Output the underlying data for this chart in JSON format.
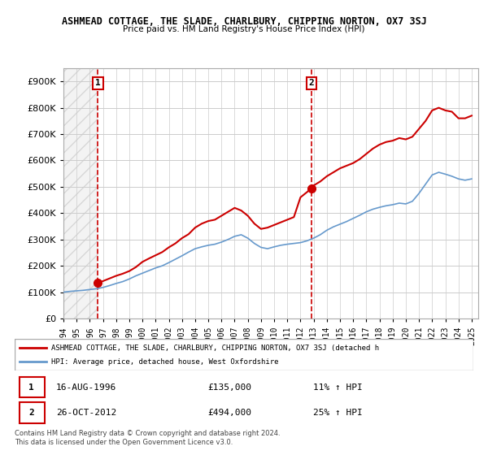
{
  "title": "ASHMEAD COTTAGE, THE SLADE, CHARLBURY, CHIPPING NORTON, OX7 3SJ",
  "subtitle": "Price paid vs. HM Land Registry's House Price Index (HPI)",
  "legend_line1": "ASHMEAD COTTAGE, THE SLADE, CHARLBURY, CHIPPING NORTON, OX7 3SJ (detached h",
  "legend_line2": "HPI: Average price, detached house, West Oxfordshire",
  "footer": "Contains HM Land Registry data © Crown copyright and database right 2024.\nThis data is licensed under the Open Government Licence v3.0.",
  "sale1_label": "1",
  "sale1_date": "16-AUG-1996",
  "sale1_price": "£135,000",
  "sale1_hpi": "11% ↑ HPI",
  "sale1_year": 1996.62,
  "sale1_value": 135000,
  "sale2_label": "2",
  "sale2_date": "26-OCT-2012",
  "sale2_price": "£494,000",
  "sale2_hpi": "25% ↑ HPI",
  "sale2_year": 2012.82,
  "sale2_value": 494000,
  "property_color": "#cc0000",
  "hpi_color": "#6699cc",
  "background_hatch_color": "#dddddd",
  "ylim": [
    0,
    950000
  ],
  "xlim_start": 1994.0,
  "xlim_end": 2025.5,
  "yticks": [
    0,
    100000,
    200000,
    300000,
    400000,
    500000,
    600000,
    700000,
    800000,
    900000
  ],
  "ytick_labels": [
    "£0",
    "£100K",
    "£200K",
    "£300K",
    "£400K",
    "£500K",
    "£600K",
    "£700K",
    "£800K",
    "£900K"
  ],
  "xticks": [
    1994,
    1995,
    1996,
    1997,
    1998,
    1999,
    2000,
    2001,
    2002,
    2003,
    2004,
    2005,
    2006,
    2007,
    2008,
    2009,
    2010,
    2011,
    2012,
    2013,
    2014,
    2015,
    2016,
    2017,
    2018,
    2019,
    2020,
    2021,
    2022,
    2023,
    2024,
    2025
  ],
  "property_x": [
    1996.62,
    1997.0,
    1997.5,
    1998.0,
    1998.5,
    1999.0,
    1999.5,
    2000.0,
    2000.5,
    2001.0,
    2001.5,
    2002.0,
    2002.5,
    2003.0,
    2003.5,
    2004.0,
    2004.5,
    2005.0,
    2005.5,
    2006.0,
    2006.5,
    2007.0,
    2007.5,
    2008.0,
    2008.5,
    2009.0,
    2009.5,
    2010.0,
    2010.5,
    2011.0,
    2011.5,
    2012.0,
    2012.5,
    2012.82,
    2013.0,
    2013.5,
    2014.0,
    2014.5,
    2015.0,
    2015.5,
    2016.0,
    2016.5,
    2017.0,
    2017.5,
    2018.0,
    2018.5,
    2019.0,
    2019.5,
    2020.0,
    2020.5,
    2021.0,
    2021.5,
    2022.0,
    2022.5,
    2023.0,
    2023.5,
    2024.0,
    2024.5,
    2025.0
  ],
  "property_y": [
    135000,
    142000,
    152000,
    162000,
    170000,
    180000,
    195000,
    215000,
    228000,
    240000,
    252000,
    270000,
    285000,
    305000,
    320000,
    345000,
    360000,
    370000,
    375000,
    390000,
    405000,
    420000,
    410000,
    390000,
    360000,
    340000,
    345000,
    355000,
    365000,
    375000,
    385000,
    460000,
    480000,
    494000,
    505000,
    520000,
    540000,
    555000,
    570000,
    580000,
    590000,
    605000,
    625000,
    645000,
    660000,
    670000,
    675000,
    685000,
    680000,
    690000,
    720000,
    750000,
    790000,
    800000,
    790000,
    785000,
    760000,
    760000,
    770000
  ],
  "hpi_x": [
    1994.0,
    1994.5,
    1995.0,
    1995.5,
    1996.0,
    1996.5,
    1997.0,
    1997.5,
    1998.0,
    1998.5,
    1999.0,
    1999.5,
    2000.0,
    2000.5,
    2001.0,
    2001.5,
    2002.0,
    2002.5,
    2003.0,
    2003.5,
    2004.0,
    2004.5,
    2005.0,
    2005.5,
    2006.0,
    2006.5,
    2007.0,
    2007.5,
    2008.0,
    2008.5,
    2009.0,
    2009.5,
    2010.0,
    2010.5,
    2011.0,
    2011.5,
    2012.0,
    2012.5,
    2013.0,
    2013.5,
    2014.0,
    2014.5,
    2015.0,
    2015.5,
    2016.0,
    2016.5,
    2017.0,
    2017.5,
    2018.0,
    2018.5,
    2019.0,
    2019.5,
    2020.0,
    2020.5,
    2021.0,
    2021.5,
    2022.0,
    2022.5,
    2023.0,
    2023.5,
    2024.0,
    2024.5,
    2025.0
  ],
  "hpi_y": [
    100000,
    103000,
    105000,
    107000,
    110000,
    113000,
    118000,
    125000,
    133000,
    140000,
    150000,
    162000,
    172000,
    182000,
    192000,
    200000,
    212000,
    225000,
    238000,
    252000,
    265000,
    272000,
    278000,
    282000,
    290000,
    300000,
    312000,
    318000,
    305000,
    285000,
    270000,
    265000,
    272000,
    278000,
    282000,
    285000,
    288000,
    295000,
    305000,
    318000,
    335000,
    348000,
    358000,
    368000,
    380000,
    392000,
    405000,
    415000,
    422000,
    428000,
    432000,
    438000,
    435000,
    445000,
    475000,
    510000,
    545000,
    555000,
    548000,
    540000,
    530000,
    525000,
    530000
  ],
  "dashed_vline1": 1996.62,
  "dashed_vline2": 2012.82,
  "grid_color": "#cccccc",
  "hatch_region_end": 1996.62
}
